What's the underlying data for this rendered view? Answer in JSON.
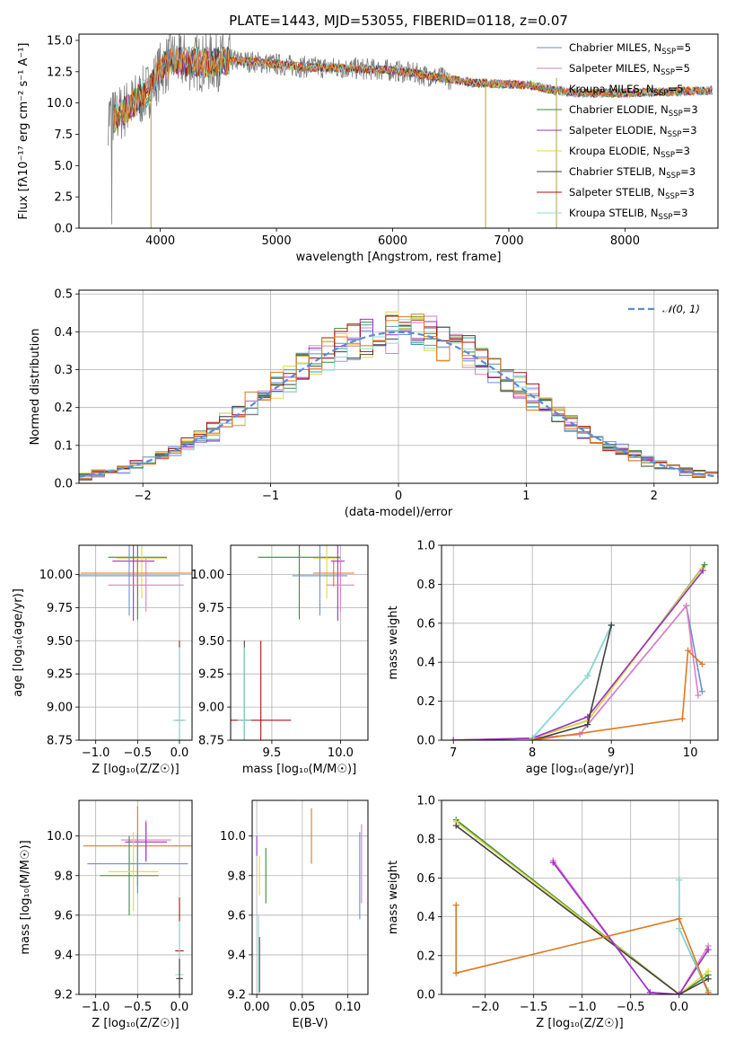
{
  "figure": {
    "title": "PLATE=1443, MJD=53055, FIBERID=0118, z=0.07"
  },
  "colors": {
    "Chabrier MILES": "#6a8fd6",
    "Salpeter MILES": "#e07fbf",
    "Kroupa MILES": "#3aa0a0",
    "Chabrier ELODIE": "#3c8a3c",
    "Salpeter ELODIE": "#9b30c8",
    "Kroupa ELODIE": "#e0d840",
    "Chabrier STELIB": "#404040",
    "Salpeter STELIB": "#b01010",
    "Kroupa STELIB": "#90d8d8",
    "extra": "#e07820"
  },
  "chart_data": [
    {
      "id": "spectrum",
      "type": "line",
      "xlabel": "wavelength [Angstrom, rest frame]",
      "ylabel": "Flux [fλ10⁻¹⁷ erg cm⁻² s⁻¹ A⁻¹]",
      "xlim": [
        3300,
        8800
      ],
      "ylim": [
        0,
        15.5
      ],
      "xticks": [
        "4000",
        "5000",
        "6000",
        "7000",
        "8000"
      ],
      "yticks": [
        "0.0",
        "2.5",
        "5.0",
        "7.5",
        "10.0",
        "12.5",
        "15.0"
      ],
      "legend_position": "upper right",
      "legend": [
        "Chabrier MILES, N",
        "Salpeter MILES, N",
        "Kroupa MILES, N",
        "Chabrier ELODIE, N",
        "Salpeter ELODIE, N",
        "Kroupa ELODIE, N",
        "Chabrier STELIB, N",
        "Salpeter STELIB, N",
        "Kroupa STELIB, N"
      ],
      "legend_ssp": [
        "=5",
        "=5",
        "=5",
        "=3",
        "=3",
        "=3",
        "=3",
        "=3",
        "=3"
      ],
      "legend_sub": "SSP",
      "data_curve": {
        "x": [
          3550,
          3600,
          3700,
          3800,
          3900,
          4000,
          4100,
          4200,
          4400,
          4600,
          4800,
          5000,
          5200,
          5500,
          5800,
          6000,
          6300,
          6500,
          6700,
          7000,
          7200,
          7400,
          7600,
          8000,
          8400,
          8750
        ],
        "y": [
          9.0,
          8.8,
          9.5,
          10.2,
          11.0,
          12.6,
          13.5,
          13.3,
          13.2,
          13.4,
          13.3,
          13.1,
          12.9,
          12.8,
          12.7,
          12.6,
          12.2,
          11.9,
          11.6,
          11.5,
          11.4,
          11.0,
          10.8,
          10.8,
          10.9,
          11.0
        ]
      },
      "notes_dips": [
        3920,
        6800,
        7410
      ]
    },
    {
      "id": "residuals",
      "type": "histogram",
      "xlabel": "(data-model)/error",
      "ylabel": "Normed distribution",
      "xlim": [
        -2.5,
        2.5
      ],
      "ylim": [
        0,
        0.51
      ],
      "xticks": [
        "−2",
        "−1",
        "0",
        "1",
        "2"
      ],
      "yticks": [
        "0.0",
        "0.1",
        "0.2",
        "0.3",
        "0.4",
        "0.5"
      ],
      "gaussian_label": "𝒩(0, 1)",
      "gaussian_legend_position": "upper right"
    },
    {
      "id": "age-vs-Z",
      "type": "errorbar",
      "xlabel": "Z [log₁₀(Z/Z☉)]",
      "ylabel": "age  [log₁₀(age/yr)]",
      "xlim": [
        -1.2,
        0.15
      ],
      "ylim": [
        8.75,
        10.22
      ],
      "xticks": [
        "−1.0",
        "−0.5",
        "0.0"
      ],
      "yticks": [
        "8.75",
        "9.00",
        "9.25",
        "9.50",
        "9.75",
        "10.00"
      ],
      "points": [
        {
          "c": "Chabrier ELODIE",
          "x": -0.5,
          "xe": 0.35,
          "y": 10.13,
          "ye": 0.47
        },
        {
          "c": "Kroupa ELODIE",
          "x": -0.45,
          "xe": 0.3,
          "y": 10.12,
          "ye": 0.3
        },
        {
          "c": "Salpeter ELODIE",
          "x": -0.55,
          "xe": 0.25,
          "y": 10.1,
          "ye": 0.45
        },
        {
          "c": "Chabrier MILES",
          "x": -0.6,
          "xe": 0.6,
          "y": 9.99,
          "ye": 0.3
        },
        {
          "c": "Salpeter MILES",
          "x": -0.4,
          "xe": 0.45,
          "y": 9.92,
          "ye": 0.2
        },
        {
          "c": "extra",
          "x": -0.5,
          "xe": 0.68,
          "y": 10.01,
          "ye": 0.1
        },
        {
          "c": "Salpeter STELIB",
          "x": 0.0,
          "xe": 0.05,
          "y": 8.9,
          "ye": 0.6
        },
        {
          "c": "Kroupa STELIB",
          "x": 0.0,
          "xe": 0.08,
          "y": 8.9,
          "ye": 0.55
        }
      ]
    },
    {
      "id": "age-vs-mass",
      "type": "errorbar",
      "xlabel": "mass [log₁₀(M/M☉)]",
      "xlim": [
        9.2,
        10.2
      ],
      "ylim": [
        8.75,
        10.22
      ],
      "xticks": [
        "9.5",
        "10.0"
      ],
      "yticks": [
        "8.75",
        "9.00",
        "9.25",
        "9.50",
        "9.75",
        "10.00"
      ],
      "points": [
        {
          "c": "Chabrier ELODIE",
          "x": 9.7,
          "xe": 0.3,
          "y": 10.13,
          "ye": 0.47
        },
        {
          "c": "Kroupa ELODIE",
          "x": 9.9,
          "xe": 0.1,
          "y": 10.12,
          "ye": 0.3
        },
        {
          "c": "Salpeter ELODIE",
          "x": 9.98,
          "xe": 0.05,
          "y": 10.1,
          "ye": 0.45
        },
        {
          "c": "Chabrier MILES",
          "x": 9.85,
          "xe": 0.2,
          "y": 9.99,
          "ye": 0.3
        },
        {
          "c": "Salpeter MILES",
          "x": 10.0,
          "xe": 0.1,
          "y": 9.92,
          "ye": 0.2
        },
        {
          "c": "extra",
          "x": 9.95,
          "xe": 0.15,
          "y": 10.01,
          "ye": 0.1
        },
        {
          "c": "Salpeter STELIB",
          "x": 9.42,
          "xe": 0.22,
          "y": 8.9,
          "ye": 0.6
        },
        {
          "c": "Chabrier STELIB",
          "x": 9.3,
          "xe": 0.05,
          "y": 8.9,
          "ye": 0.6
        },
        {
          "c": "Kroupa STELIB",
          "x": 9.3,
          "xe": 0.05,
          "y": 8.9,
          "ye": 0.55
        }
      ]
    },
    {
      "id": "weight-vs-age",
      "type": "line",
      "xlabel": "age  [log₁₀(age/yr)]",
      "ylabel": "mass weight",
      "xlim": [
        6.85,
        10.35
      ],
      "ylim": [
        0,
        1.0
      ],
      "xticks": [
        "7",
        "8",
        "9",
        "10"
      ],
      "yticks": [
        "0.0",
        "0.2",
        "0.4",
        "0.6",
        "0.8",
        "1.0"
      ],
      "series": [
        {
          "c": "Chabrier ELODIE",
          "x": [
            7.0,
            8.0,
            8.7,
            10.18
          ],
          "y": [
            0.0,
            0.01,
            0.1,
            0.9
          ]
        },
        {
          "c": "Kroupa ELODIE",
          "x": [
            7.0,
            8.0,
            8.7,
            10.15
          ],
          "y": [
            0.0,
            0.01,
            0.1,
            0.88
          ]
        },
        {
          "c": "Salpeter ELODIE",
          "x": [
            7.0,
            8.0,
            8.7,
            10.16
          ],
          "y": [
            0.0,
            0.01,
            0.12,
            0.87
          ]
        },
        {
          "c": "Chabrier MILES",
          "x": [
            8.0,
            8.6,
            9.95,
            10.15
          ],
          "y": [
            0.01,
            0.03,
            0.69,
            0.25
          ]
        },
        {
          "c": "Salpeter MILES",
          "x": [
            8.0,
            8.6,
            9.95,
            10.1
          ],
          "y": [
            0.01,
            0.03,
            0.69,
            0.23
          ]
        },
        {
          "c": "Kroupa MILES",
          "x": [
            8.0,
            8.7,
            9.0
          ],
          "y": [
            0.01,
            0.33,
            0.59
          ]
        },
        {
          "c": "Kroupa STELIB",
          "x": [
            8.0,
            8.7,
            9.0
          ],
          "y": [
            0.01,
            0.33,
            0.59
          ]
        },
        {
          "c": "Chabrier STELIB",
          "x": [
            8.0,
            8.7,
            9.0
          ],
          "y": [
            0.0,
            0.08,
            0.59
          ]
        },
        {
          "c": "extra",
          "x": [
            8.0,
            9.9,
            9.97,
            10.15
          ],
          "y": [
            0.0,
            0.11,
            0.46,
            0.39
          ]
        }
      ]
    },
    {
      "id": "mass-vs-Z",
      "type": "errorbar",
      "xlabel": "Z [log₁₀(Z/Z☉)]",
      "ylabel": "mass [log₁₀(M/M☉)]",
      "xlim": [
        -1.2,
        0.15
      ],
      "ylim": [
        9.2,
        10.18
      ],
      "xticks": [
        "−1.0",
        "−0.5",
        "0.0"
      ],
      "yticks": [
        "9.2",
        "9.4",
        "9.6",
        "9.8",
        "10.0"
      ],
      "points": [
        {
          "c": "extra",
          "x": -0.5,
          "xe": 0.65,
          "y": 9.95,
          "ye": 0.2
        },
        {
          "c": "Salpeter MILES",
          "x": -0.4,
          "xe": 0.3,
          "y": 9.98,
          "ye": 0.1
        },
        {
          "c": "Salpeter ELODIE",
          "x": -0.4,
          "xe": 0.25,
          "y": 9.97,
          "ye": 0.1
        },
        {
          "c": "Chabrier ELODIE",
          "x": -0.6,
          "xe": 0.35,
          "y": 9.8,
          "ye": 0.2
        },
        {
          "c": "Kroupa ELODIE",
          "x": -0.55,
          "xe": 0.3,
          "y": 9.82,
          "ye": 0.2
        },
        {
          "c": "Chabrier MILES",
          "x": -0.5,
          "xe": 0.6,
          "y": 9.86,
          "ye": 0.15
        },
        {
          "c": "Salpeter STELIB",
          "x": 0.0,
          "xe": 0.05,
          "y": 9.42,
          "ye": 0.27
        },
        {
          "c": "Kroupa STELIB",
          "x": 0.0,
          "xe": 0.05,
          "y": 9.3,
          "ye": 0.27
        },
        {
          "c": "Chabrier STELIB",
          "x": 0.0,
          "xe": 0.04,
          "y": 9.28,
          "ye": 0.1
        }
      ]
    },
    {
      "id": "mass-vs-EBV",
      "type": "errorbar",
      "xlabel": "E(B-V)",
      "xlim": [
        -0.005,
        0.122
      ],
      "ylim": [
        9.2,
        10.18
      ],
      "xticks": [
        "0.00",
        "0.05",
        "0.10"
      ],
      "yticks": [
        "9.2",
        "9.4",
        "9.6",
        "9.8",
        "10.0"
      ],
      "points": [
        {
          "c": "extra",
          "x": 0.06,
          "xe": 0,
          "y": 10.0,
          "ye": 0.14
        },
        {
          "c": "Salpeter MILES",
          "x": 0.115,
          "xe": 0,
          "y": 9.86,
          "ye": 0.2
        },
        {
          "c": "Chabrier MILES",
          "x": 0.113,
          "xe": 0,
          "y": 9.8,
          "ye": 0.22
        },
        {
          "c": "Chabrier ELODIE",
          "x": 0.01,
          "xe": 0,
          "y": 9.8,
          "ye": 0.14
        },
        {
          "c": "Salpeter ELODIE",
          "x": 0.0,
          "xe": 0,
          "y": 9.95,
          "ye": 0.05
        },
        {
          "c": "Kroupa ELODIE",
          "x": 0.003,
          "xe": 0,
          "y": 9.8,
          "ye": 0.1
        },
        {
          "c": "Chabrier STELIB",
          "x": 0.003,
          "xe": 0,
          "y": 9.35,
          "ye": 0.14
        },
        {
          "c": "Kroupa STELIB",
          "x": 0.002,
          "xe": 0,
          "y": 9.4,
          "ye": 0.2
        }
      ]
    },
    {
      "id": "weight-vs-Z",
      "type": "line",
      "xlabel": "Z [log₁₀(Z/Z☉)]",
      "ylabel": "mass weight",
      "xlim": [
        -2.45,
        0.4
      ],
      "ylim": [
        0,
        1.0
      ],
      "xticks": [
        "−2.0",
        "−1.5",
        "−1.0",
        "−0.5",
        "0.0"
      ],
      "yticks": [
        "0.0",
        "0.2",
        "0.4",
        "0.6",
        "0.8",
        "1.0"
      ],
      "series": [
        {
          "c": "Chabrier ELODIE",
          "x": [
            -2.3,
            0.0,
            0.3
          ],
          "y": [
            0.9,
            0.0,
            0.1
          ]
        },
        {
          "c": "Kroupa ELODIE",
          "x": [
            -2.3,
            0.0,
            0.3
          ],
          "y": [
            0.89,
            0.0,
            0.12
          ]
        },
        {
          "c": "Chabrier STELIB",
          "x": [
            -2.3,
            0.0,
            0.3
          ],
          "y": [
            0.87,
            0.0,
            0.08
          ]
        },
        {
          "c": "Salpeter MILES",
          "x": [
            -1.3,
            -0.3,
            0.0,
            0.3
          ],
          "y": [
            0.69,
            0.01,
            0.0,
            0.25
          ]
        },
        {
          "c": "Salpeter ELODIE",
          "x": [
            -1.3,
            -0.3,
            0.0,
            0.3
          ],
          "y": [
            0.68,
            0.01,
            0.0,
            0.23
          ]
        },
        {
          "c": "Kroupa MILES",
          "x": [
            0.0,
            0.0,
            0.3
          ],
          "y": [
            0.59,
            0.34,
            0.01
          ]
        },
        {
          "c": "Kroupa STELIB",
          "x": [
            0.0,
            0.0,
            0.3
          ],
          "y": [
            0.59,
            0.34,
            0.02
          ]
        },
        {
          "c": "extra",
          "x": [
            -2.3,
            -2.3,
            0.0,
            0.3
          ],
          "y": [
            0.46,
            0.11,
            0.39,
            0.01
          ]
        }
      ]
    }
  ]
}
